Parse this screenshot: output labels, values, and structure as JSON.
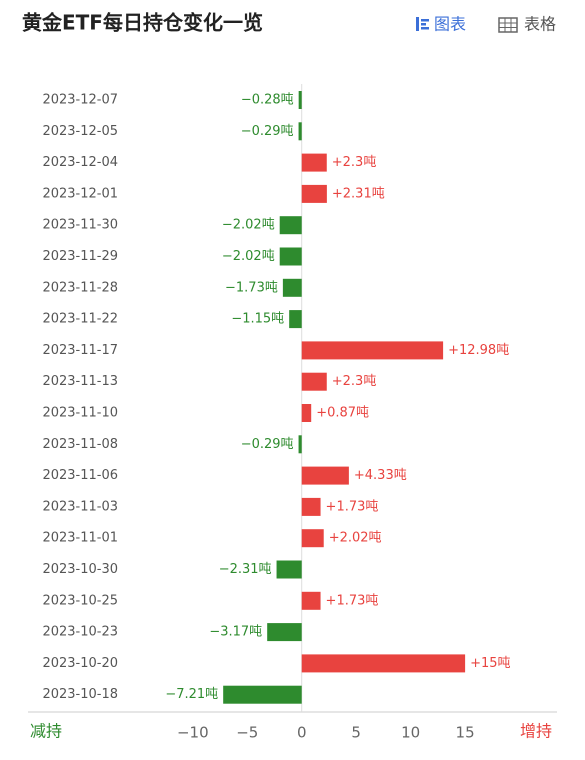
{
  "header": {
    "title": "黄金ETF每日持仓变化一览",
    "tabs": [
      "图表",
      "表格"
    ]
  },
  "chart_data": {
    "type": "bar",
    "orientation": "horizontal",
    "categories": [
      "2023-12-07",
      "2023-12-05",
      "2023-12-04",
      "2023-12-01",
      "2023-11-30",
      "2023-11-29",
      "2023-11-28",
      "2023-11-22",
      "2023-11-17",
      "2023-11-13",
      "2023-11-10",
      "2023-11-08",
      "2023-11-06",
      "2023-11-03",
      "2023-11-01",
      "2023-10-30",
      "2023-10-25",
      "2023-10-23",
      "2023-10-20",
      "2023-10-18"
    ],
    "values": [
      -0.28,
      -0.29,
      2.3,
      2.31,
      -2.02,
      -2.02,
      -1.73,
      -1.15,
      12.98,
      2.3,
      0.87,
      -0.29,
      4.33,
      1.73,
      2.02,
      -2.31,
      1.73,
      -3.17,
      15,
      -7.21
    ],
    "value_labels": [
      "−0.28吨",
      "−0.29吨",
      "+2.3吨",
      "+2.31吨",
      "−2.02吨",
      "−2.02吨",
      "−1.73吨",
      "−1.15吨",
      "+12.98吨",
      "+2.3吨",
      "+0.87吨",
      "−0.29吨",
      "+4.33吨",
      "+1.73吨",
      "+2.02吨",
      "−2.31吨",
      "+1.73吨",
      "−3.17吨",
      "+15吨",
      "−7.21吨"
    ],
    "positive_color": "#e8433f",
    "negative_color": "#2e8b2e",
    "xlim": [
      -12,
      16
    ],
    "xticks": [
      {
        "value": -10,
        "label": "−10"
      },
      {
        "value": -5,
        "label": "−5"
      },
      0,
      5,
      10,
      15
    ],
    "axis_labels": {
      "left": "减持",
      "right": "增持"
    }
  }
}
